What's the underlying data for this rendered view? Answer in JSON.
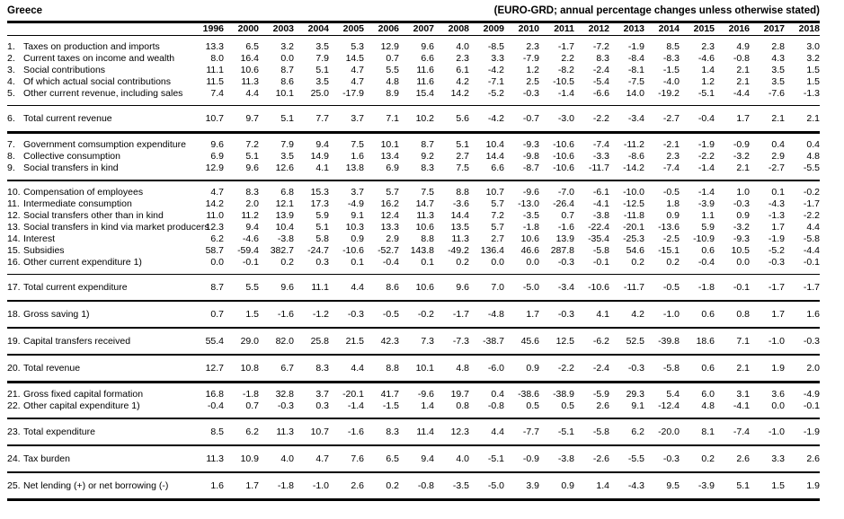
{
  "header": {
    "country": "Greece",
    "note": "(EURO-GRD; annual percentage changes unless otherwise stated)"
  },
  "table": {
    "years": [
      "1996",
      "2000",
      "2003",
      "2004",
      "2005",
      "2006",
      "2007",
      "2008",
      "2009",
      "2010",
      "2011",
      "2012",
      "2013",
      "2014",
      "2015",
      "2016",
      "2017",
      "2018"
    ],
    "sections": [
      {
        "border_after": "thin",
        "rows": [
          {
            "num": "1.",
            "label": "Taxes on production and imports",
            "values": [
              "13.3",
              "6.5",
              "3.2",
              "3.5",
              "5.3",
              "12.9",
              "9.6",
              "4.0",
              "-8.5",
              "2.3",
              "-1.7",
              "-7.2",
              "-1.9",
              "8.5",
              "2.3",
              "4.9",
              "2.8",
              "3.0"
            ]
          },
          {
            "num": "2.",
            "label": "Current taxes on income and wealth",
            "values": [
              "8.0",
              "16.4",
              "0.0",
              "7.9",
              "14.5",
              "0.7",
              "6.6",
              "2.3",
              "3.3",
              "-7.9",
              "2.2",
              "8.3",
              "-8.4",
              "-8.3",
              "-4.6",
              "-0.8",
              "4.3",
              "3.2"
            ]
          },
          {
            "num": "3.",
            "label": "Social contributions",
            "values": [
              "11.1",
              "10.6",
              "8.7",
              "5.1",
              "4.7",
              "5.5",
              "11.6",
              "6.1",
              "-4.2",
              "1.2",
              "-8.2",
              "-2.4",
              "-8.1",
              "-1.5",
              "1.4",
              "2.1",
              "3.5",
              "1.5"
            ]
          },
          {
            "num": "4.",
            "label": "Of which actual social contributions",
            "values": [
              "11.5",
              "11.3",
              "8.6",
              "3.5",
              "4.7",
              "4.8",
              "11.6",
              "4.2",
              "-7.1",
              "2.5",
              "-10.5",
              "-5.4",
              "-7.5",
              "-4.0",
              "1.2",
              "2.1",
              "3.5",
              "1.5"
            ]
          },
          {
            "num": "5.",
            "label": "Other current revenue, including sales",
            "values": [
              "7.4",
              "4.4",
              "10.1",
              "25.0",
              "-17.9",
              "8.9",
              "15.4",
              "14.2",
              "-5.2",
              "-0.3",
              "-1.4",
              "-6.6",
              "14.0",
              "-19.2",
              "-5.1",
              "-4.4",
              "-7.6",
              "-1.3"
            ]
          }
        ]
      },
      {
        "border_after": "thick",
        "rows": [
          {
            "num": "6.",
            "label": "Total current revenue",
            "values": [
              "10.7",
              "9.7",
              "5.1",
              "7.7",
              "3.7",
              "7.1",
              "10.2",
              "5.6",
              "-4.2",
              "-0.7",
              "-3.0",
              "-2.2",
              "-3.4",
              "-2.7",
              "-0.4",
              "1.7",
              "2.1",
              "2.1"
            ]
          }
        ]
      },
      {
        "border_after": "medium",
        "rows": [
          {
            "num": "7.",
            "label": "Government comsumption expenditure",
            "values": [
              "9.6",
              "7.2",
              "7.9",
              "9.4",
              "7.5",
              "10.1",
              "8.7",
              "5.1",
              "10.4",
              "-9.3",
              "-10.6",
              "-7.4",
              "-11.2",
              "-2.1",
              "-1.9",
              "-0.9",
              "0.4",
              "0.4"
            ]
          },
          {
            "num": "8.",
            "label": "Collective consumption",
            "values": [
              "6.9",
              "5.1",
              "3.5",
              "14.9",
              "1.6",
              "13.4",
              "9.2",
              "2.7",
              "14.4",
              "-9.8",
              "-10.6",
              "-3.3",
              "-8.6",
              "2.3",
              "-2.2",
              "-3.2",
              "2.9",
              "4.8"
            ]
          },
          {
            "num": "9.",
            "label": "Social transfers in kind",
            "values": [
              "12.9",
              "9.6",
              "12.6",
              "4.1",
              "13.8",
              "6.9",
              "8.3",
              "7.5",
              "6.6",
              "-8.7",
              "-10.6",
              "-11.7",
              "-14.2",
              "-7.4",
              "-1.4",
              "2.1",
              "-2.7",
              "-5.5"
            ]
          }
        ]
      },
      {
        "border_after": "thin",
        "rows": [
          {
            "num": "10.",
            "label": "Compensation of employees",
            "values": [
              "4.7",
              "8.3",
              "6.8",
              "15.3",
              "3.7",
              "5.7",
              "7.5",
              "8.8",
              "10.7",
              "-9.6",
              "-7.0",
              "-6.1",
              "-10.0",
              "-0.5",
              "-1.4",
              "1.0",
              "0.1",
              "-0.2"
            ]
          },
          {
            "num": "11.",
            "label": "Intermediate consumption",
            "values": [
              "14.2",
              "2.0",
              "12.1",
              "17.3",
              "-4.9",
              "16.2",
              "14.7",
              "-3.6",
              "5.7",
              "-13.0",
              "-26.4",
              "-4.1",
              "-12.5",
              "1.8",
              "-3.9",
              "-0.3",
              "-4.3",
              "-1.7"
            ]
          },
          {
            "num": "12.",
            "label": "Social transfers other than in kind",
            "values": [
              "11.0",
              "11.2",
              "13.9",
              "5.9",
              "9.1",
              "12.4",
              "11.3",
              "14.4",
              "7.2",
              "-3.5",
              "0.7",
              "-3.8",
              "-11.8",
              "0.9",
              "1.1",
              "0.9",
              "-1.3",
              "-2.2"
            ]
          },
          {
            "num": "13.",
            "label": "Social transfers in kind via market producers",
            "values": [
              "12.3",
              "9.4",
              "10.4",
              "5.1",
              "10.3",
              "13.3",
              "10.6",
              "13.5",
              "5.7",
              "-1.8",
              "-1.6",
              "-22.4",
              "-20.1",
              "-13.6",
              "5.9",
              "-3.2",
              "1.7",
              "4.4"
            ]
          },
          {
            "num": "14.",
            "label": "Interest",
            "values": [
              "6.2",
              "-4.6",
              "-3.8",
              "5.8",
              "0.9",
              "2.9",
              "8.8",
              "11.3",
              "2.7",
              "10.6",
              "13.9",
              "-35.4",
              "-25.3",
              "-2.5",
              "-10.9",
              "-9.3",
              "-1.9",
              "-5.8"
            ]
          },
          {
            "num": "15.",
            "label": "Subsidies",
            "values": [
              "58.7",
              "-59.4",
              "382.7",
              "-24.7",
              "-10.6",
              "-52.7",
              "143.8",
              "-49.2",
              "136.4",
              "46.6",
              "287.8",
              "-5.8",
              "54.6",
              "-15.1",
              "0.6",
              "10.5",
              "-5.2",
              "-4.4"
            ]
          },
          {
            "num": "16.",
            "label": "Other current expenditure 1)",
            "values": [
              "0.0",
              "-0.1",
              "0.2",
              "0.3",
              "0.1",
              "-0.4",
              "0.1",
              "0.2",
              "0.0",
              "0.0",
              "-0.3",
              "-0.1",
              "0.2",
              "0.2",
              "-0.4",
              "0.0",
              "-0.3",
              "-0.1"
            ]
          }
        ]
      },
      {
        "border_after": "medium",
        "rows": [
          {
            "num": "17.",
            "label": "Total current expenditure",
            "values": [
              "8.7",
              "5.5",
              "9.6",
              "11.1",
              "4.4",
              "8.6",
              "10.6",
              "9.6",
              "7.0",
              "-5.0",
              "-3.4",
              "-10.6",
              "-11.7",
              "-0.5",
              "-1.8",
              "-0.1",
              "-1.7",
              "-1.7"
            ]
          }
        ]
      },
      {
        "border_after": "medium",
        "rows": [
          {
            "num": "18.",
            "label": "Gross saving 1)",
            "values": [
              "0.7",
              "1.5",
              "-1.6",
              "-1.2",
              "-0.3",
              "-0.5",
              "-0.2",
              "-1.7",
              "-4.8",
              "1.7",
              "-0.3",
              "4.1",
              "4.2",
              "-1.0",
              "0.6",
              "0.8",
              "1.7",
              "1.6"
            ]
          }
        ]
      },
      {
        "border_after": "medium",
        "rows": [
          {
            "num": "19.",
            "label": "Capital transfers received",
            "values": [
              "55.4",
              "29.0",
              "82.0",
              "25.8",
              "21.5",
              "42.3",
              "7.3",
              "-7.3",
              "-38.7",
              "45.6",
              "12.5",
              "-6.2",
              "52.5",
              "-39.8",
              "18.6",
              "7.1",
              "-1.0",
              "-0.3"
            ]
          }
        ]
      },
      {
        "border_after": "thick",
        "rows": [
          {
            "num": "20.",
            "label": "Total revenue",
            "values": [
              "12.7",
              "10.8",
              "6.7",
              "8.3",
              "4.4",
              "8.8",
              "10.1",
              "4.8",
              "-6.0",
              "0.9",
              "-2.2",
              "-2.4",
              "-0.3",
              "-5.8",
              "0.6",
              "2.1",
              "1.9",
              "2.0"
            ]
          }
        ]
      },
      {
        "border_after": "medium",
        "rows": [
          {
            "num": "21.",
            "label": "Gross fixed capital formation",
            "values": [
              "16.8",
              "-1.8",
              "32.8",
              "3.7",
              "-20.1",
              "41.7",
              "-9.6",
              "19.7",
              "0.4",
              "-38.6",
              "-38.9",
              "-5.9",
              "29.3",
              "5.4",
              "6.0",
              "3.1",
              "3.6",
              "-4.9"
            ]
          },
          {
            "num": "22.",
            "label": "Other capital expenditure 1)",
            "values": [
              "-0.4",
              "0.7",
              "-0.3",
              "0.3",
              "-1.4",
              "-1.5",
              "1.4",
              "0.8",
              "-0.8",
              "0.5",
              "0.5",
              "2.6",
              "9.1",
              "-12.4",
              "4.8",
              "-4.1",
              "0.0",
              "-0.1"
            ]
          }
        ]
      },
      {
        "border_after": "medium",
        "rows": [
          {
            "num": "23.",
            "label": "Total expenditure",
            "values": [
              "8.5",
              "6.2",
              "11.3",
              "10.7",
              "-1.6",
              "8.3",
              "11.4",
              "12.3",
              "4.4",
              "-7.7",
              "-5.1",
              "-5.8",
              "6.2",
              "-20.0",
              "8.1",
              "-7.4",
              "-1.0",
              "-1.9"
            ]
          }
        ]
      },
      {
        "border_after": "medium",
        "rows": [
          {
            "num": "24.",
            "label": "Tax burden",
            "values": [
              "11.3",
              "10.9",
              "4.0",
              "4.7",
              "7.6",
              "6.5",
              "9.4",
              "4.0",
              "-5.1",
              "-0.9",
              "-3.8",
              "-2.6",
              "-5.5",
              "-0.3",
              "0.2",
              "2.6",
              "3.3",
              "2.6"
            ]
          }
        ]
      },
      {
        "border_after": "thick",
        "rows": [
          {
            "num": "25.",
            "label": "Net lending (+) or net borrowing (-)",
            "values": [
              "1.6",
              "1.7",
              "-1.8",
              "-1.0",
              "2.6",
              "0.2",
              "-0.8",
              "-3.5",
              "-5.0",
              "3.9",
              "0.9",
              "1.4",
              "-4.3",
              "9.5",
              "-3.9",
              "5.1",
              "1.5",
              "1.9"
            ]
          }
        ]
      }
    ]
  }
}
